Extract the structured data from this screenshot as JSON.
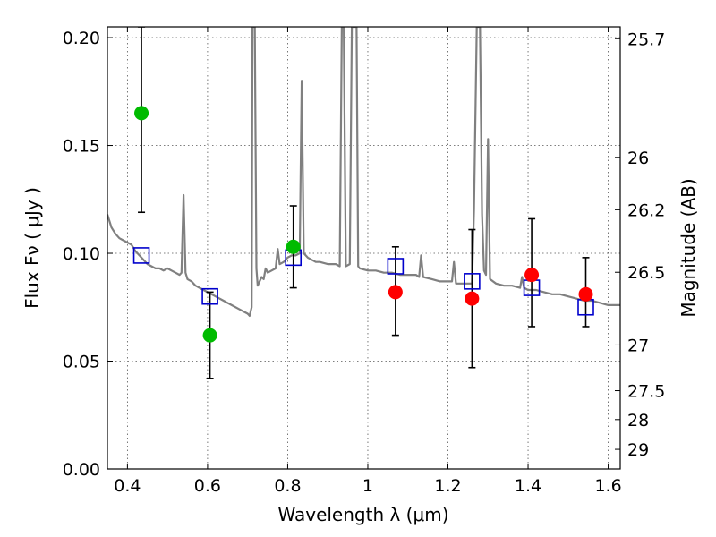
{
  "chart_data": {
    "type": "scatter",
    "xlabel": "Wavelength  λ (μm)",
    "ylabel": "Flux  Fν  ( μJy )",
    "y2label": "Magnitude (AB)",
    "xlim": [
      0.35,
      1.63
    ],
    "ylim": [
      0.0,
      0.205
    ],
    "x_ticks": [
      {
        "value": 0.4,
        "label": "0.4"
      },
      {
        "value": 0.6,
        "label": "0.6"
      },
      {
        "value": 0.8,
        "label": "0.8"
      },
      {
        "value": 1.0,
        "label": "1"
      },
      {
        "value": 1.2,
        "label": "1.2"
      },
      {
        "value": 1.4,
        "label": "1.4"
      },
      {
        "value": 1.6,
        "label": "1.6"
      }
    ],
    "y_ticks": [
      {
        "value": 0.0,
        "label": "0.00"
      },
      {
        "value": 0.05,
        "label": "0.05"
      },
      {
        "value": 0.1,
        "label": "0.10"
      },
      {
        "value": 0.15,
        "label": "0.15"
      },
      {
        "value": 0.2,
        "label": "0.20"
      }
    ],
    "y2_ticks": [
      {
        "flux": 0.1995,
        "label": "25.7"
      },
      {
        "flux": 0.1445,
        "label": "26"
      },
      {
        "flux": 0.1202,
        "label": "26.2"
      },
      {
        "flux": 0.0912,
        "label": "26.5"
      },
      {
        "flux": 0.0575,
        "label": "27"
      },
      {
        "flux": 0.0363,
        "label": "27.5"
      },
      {
        "flux": 0.0229,
        "label": "28"
      },
      {
        "flux": 0.0091,
        "label": "29"
      }
    ],
    "grid": true,
    "colors": {
      "spectrum": "#808080",
      "green_points": "#00bb00",
      "red_points": "#ff0000",
      "model_squares": "#0000cc",
      "errorbars": "#000000"
    },
    "series": [
      {
        "kind": "observed-optical",
        "points": [
          {
            "x": 0.435,
            "y": 0.165,
            "err_low": 0.119,
            "err_high": 0.205
          },
          {
            "x": 0.606,
            "y": 0.062,
            "err_low": 0.042,
            "err_high": 0.082
          },
          {
            "x": 0.814,
            "y": 0.103,
            "err_low": 0.084,
            "err_high": 0.122
          }
        ]
      },
      {
        "kind": "observed-infrared",
        "points": [
          {
            "x": 1.069,
            "y": 0.082,
            "err_low": 0.062,
            "err_high": 0.103
          },
          {
            "x": 1.26,
            "y": 0.079,
            "err_low": 0.047,
            "err_high": 0.111
          },
          {
            "x": 1.409,
            "y": 0.09,
            "err_low": 0.066,
            "err_high": 0.116
          },
          {
            "x": 1.544,
            "y": 0.081,
            "err_low": 0.066,
            "err_high": 0.098
          }
        ]
      },
      {
        "kind": "model-photometry",
        "points": [
          {
            "x": 0.435,
            "y": 0.099
          },
          {
            "x": 0.606,
            "y": 0.08
          },
          {
            "x": 0.814,
            "y": 0.098
          },
          {
            "x": 1.069,
            "y": 0.094
          },
          {
            "x": 1.26,
            "y": 0.087
          },
          {
            "x": 1.409,
            "y": 0.084
          },
          {
            "x": 1.544,
            "y": 0.075
          }
        ]
      },
      {
        "kind": "model-spectrum",
        "points": [
          [
            0.35,
            0.118
          ],
          [
            0.36,
            0.112
          ],
          [
            0.37,
            0.109
          ],
          [
            0.38,
            0.107
          ],
          [
            0.39,
            0.106
          ],
          [
            0.4,
            0.105
          ],
          [
            0.41,
            0.104
          ],
          [
            0.42,
            0.101
          ],
          [
            0.43,
            0.099
          ],
          [
            0.44,
            0.097
          ],
          [
            0.45,
            0.095
          ],
          [
            0.46,
            0.094
          ],
          [
            0.47,
            0.093
          ],
          [
            0.48,
            0.093
          ],
          [
            0.49,
            0.092
          ],
          [
            0.5,
            0.093
          ],
          [
            0.51,
            0.092
          ],
          [
            0.52,
            0.091
          ],
          [
            0.53,
            0.09
          ],
          [
            0.535,
            0.091
          ],
          [
            0.54,
            0.127
          ],
          [
            0.545,
            0.091
          ],
          [
            0.55,
            0.088
          ],
          [
            0.56,
            0.087
          ],
          [
            0.57,
            0.085
          ],
          [
            0.58,
            0.084
          ],
          [
            0.59,
            0.083
          ],
          [
            0.6,
            0.082
          ],
          [
            0.62,
            0.08
          ],
          [
            0.64,
            0.078
          ],
          [
            0.66,
            0.076
          ],
          [
            0.68,
            0.074
          ],
          [
            0.69,
            0.073
          ],
          [
            0.7,
            0.072
          ],
          [
            0.705,
            0.071
          ],
          [
            0.71,
            0.075
          ],
          [
            0.712,
            0.205
          ],
          [
            0.718,
            0.205
          ],
          [
            0.722,
            0.093
          ],
          [
            0.725,
            0.085
          ],
          [
            0.735,
            0.089
          ],
          [
            0.74,
            0.088
          ],
          [
            0.745,
            0.093
          ],
          [
            0.75,
            0.091
          ],
          [
            0.76,
            0.092
          ],
          [
            0.77,
            0.093
          ],
          [
            0.775,
            0.102
          ],
          [
            0.78,
            0.095
          ],
          [
            0.79,
            0.096
          ],
          [
            0.8,
            0.098
          ],
          [
            0.81,
            0.099
          ],
          [
            0.82,
            0.099
          ],
          [
            0.83,
            0.1
          ],
          [
            0.835,
            0.18
          ],
          [
            0.84,
            0.1
          ],
          [
            0.85,
            0.098
          ],
          [
            0.86,
            0.097
          ],
          [
            0.87,
            0.096
          ],
          [
            0.88,
            0.096
          ],
          [
            0.9,
            0.095
          ],
          [
            0.92,
            0.095
          ],
          [
            0.93,
            0.094
          ],
          [
            0.935,
            0.205
          ],
          [
            0.94,
            0.205
          ],
          [
            0.945,
            0.094
          ],
          [
            0.955,
            0.095
          ],
          [
            0.96,
            0.205
          ],
          [
            0.972,
            0.205
          ],
          [
            0.976,
            0.094
          ],
          [
            0.98,
            0.093
          ],
          [
            1.0,
            0.092
          ],
          [
            1.02,
            0.092
          ],
          [
            1.04,
            0.091
          ],
          [
            1.06,
            0.091
          ],
          [
            1.08,
            0.09
          ],
          [
            1.1,
            0.09
          ],
          [
            1.12,
            0.09
          ],
          [
            1.128,
            0.089
          ],
          [
            1.133,
            0.099
          ],
          [
            1.138,
            0.089
          ],
          [
            1.16,
            0.088
          ],
          [
            1.18,
            0.087
          ],
          [
            1.2,
            0.087
          ],
          [
            1.21,
            0.087
          ],
          [
            1.215,
            0.096
          ],
          [
            1.22,
            0.086
          ],
          [
            1.24,
            0.086
          ],
          [
            1.26,
            0.086
          ],
          [
            1.265,
            0.12
          ],
          [
            1.272,
            0.205
          ],
          [
            1.28,
            0.205
          ],
          [
            1.285,
            0.118
          ],
          [
            1.29,
            0.092
          ],
          [
            1.295,
            0.09
          ],
          [
            1.3,
            0.153
          ],
          [
            1.305,
            0.088
          ],
          [
            1.32,
            0.086
          ],
          [
            1.34,
            0.085
          ],
          [
            1.36,
            0.085
          ],
          [
            1.38,
            0.084
          ],
          [
            1.385,
            0.089
          ],
          [
            1.39,
            0.084
          ],
          [
            1.4,
            0.083
          ],
          [
            1.42,
            0.083
          ],
          [
            1.44,
            0.082
          ],
          [
            1.46,
            0.081
          ],
          [
            1.48,
            0.081
          ],
          [
            1.5,
            0.08
          ],
          [
            1.52,
            0.079
          ],
          [
            1.54,
            0.078
          ],
          [
            1.56,
            0.078
          ],
          [
            1.58,
            0.077
          ],
          [
            1.6,
            0.076
          ],
          [
            1.63,
            0.076
          ]
        ]
      }
    ]
  }
}
